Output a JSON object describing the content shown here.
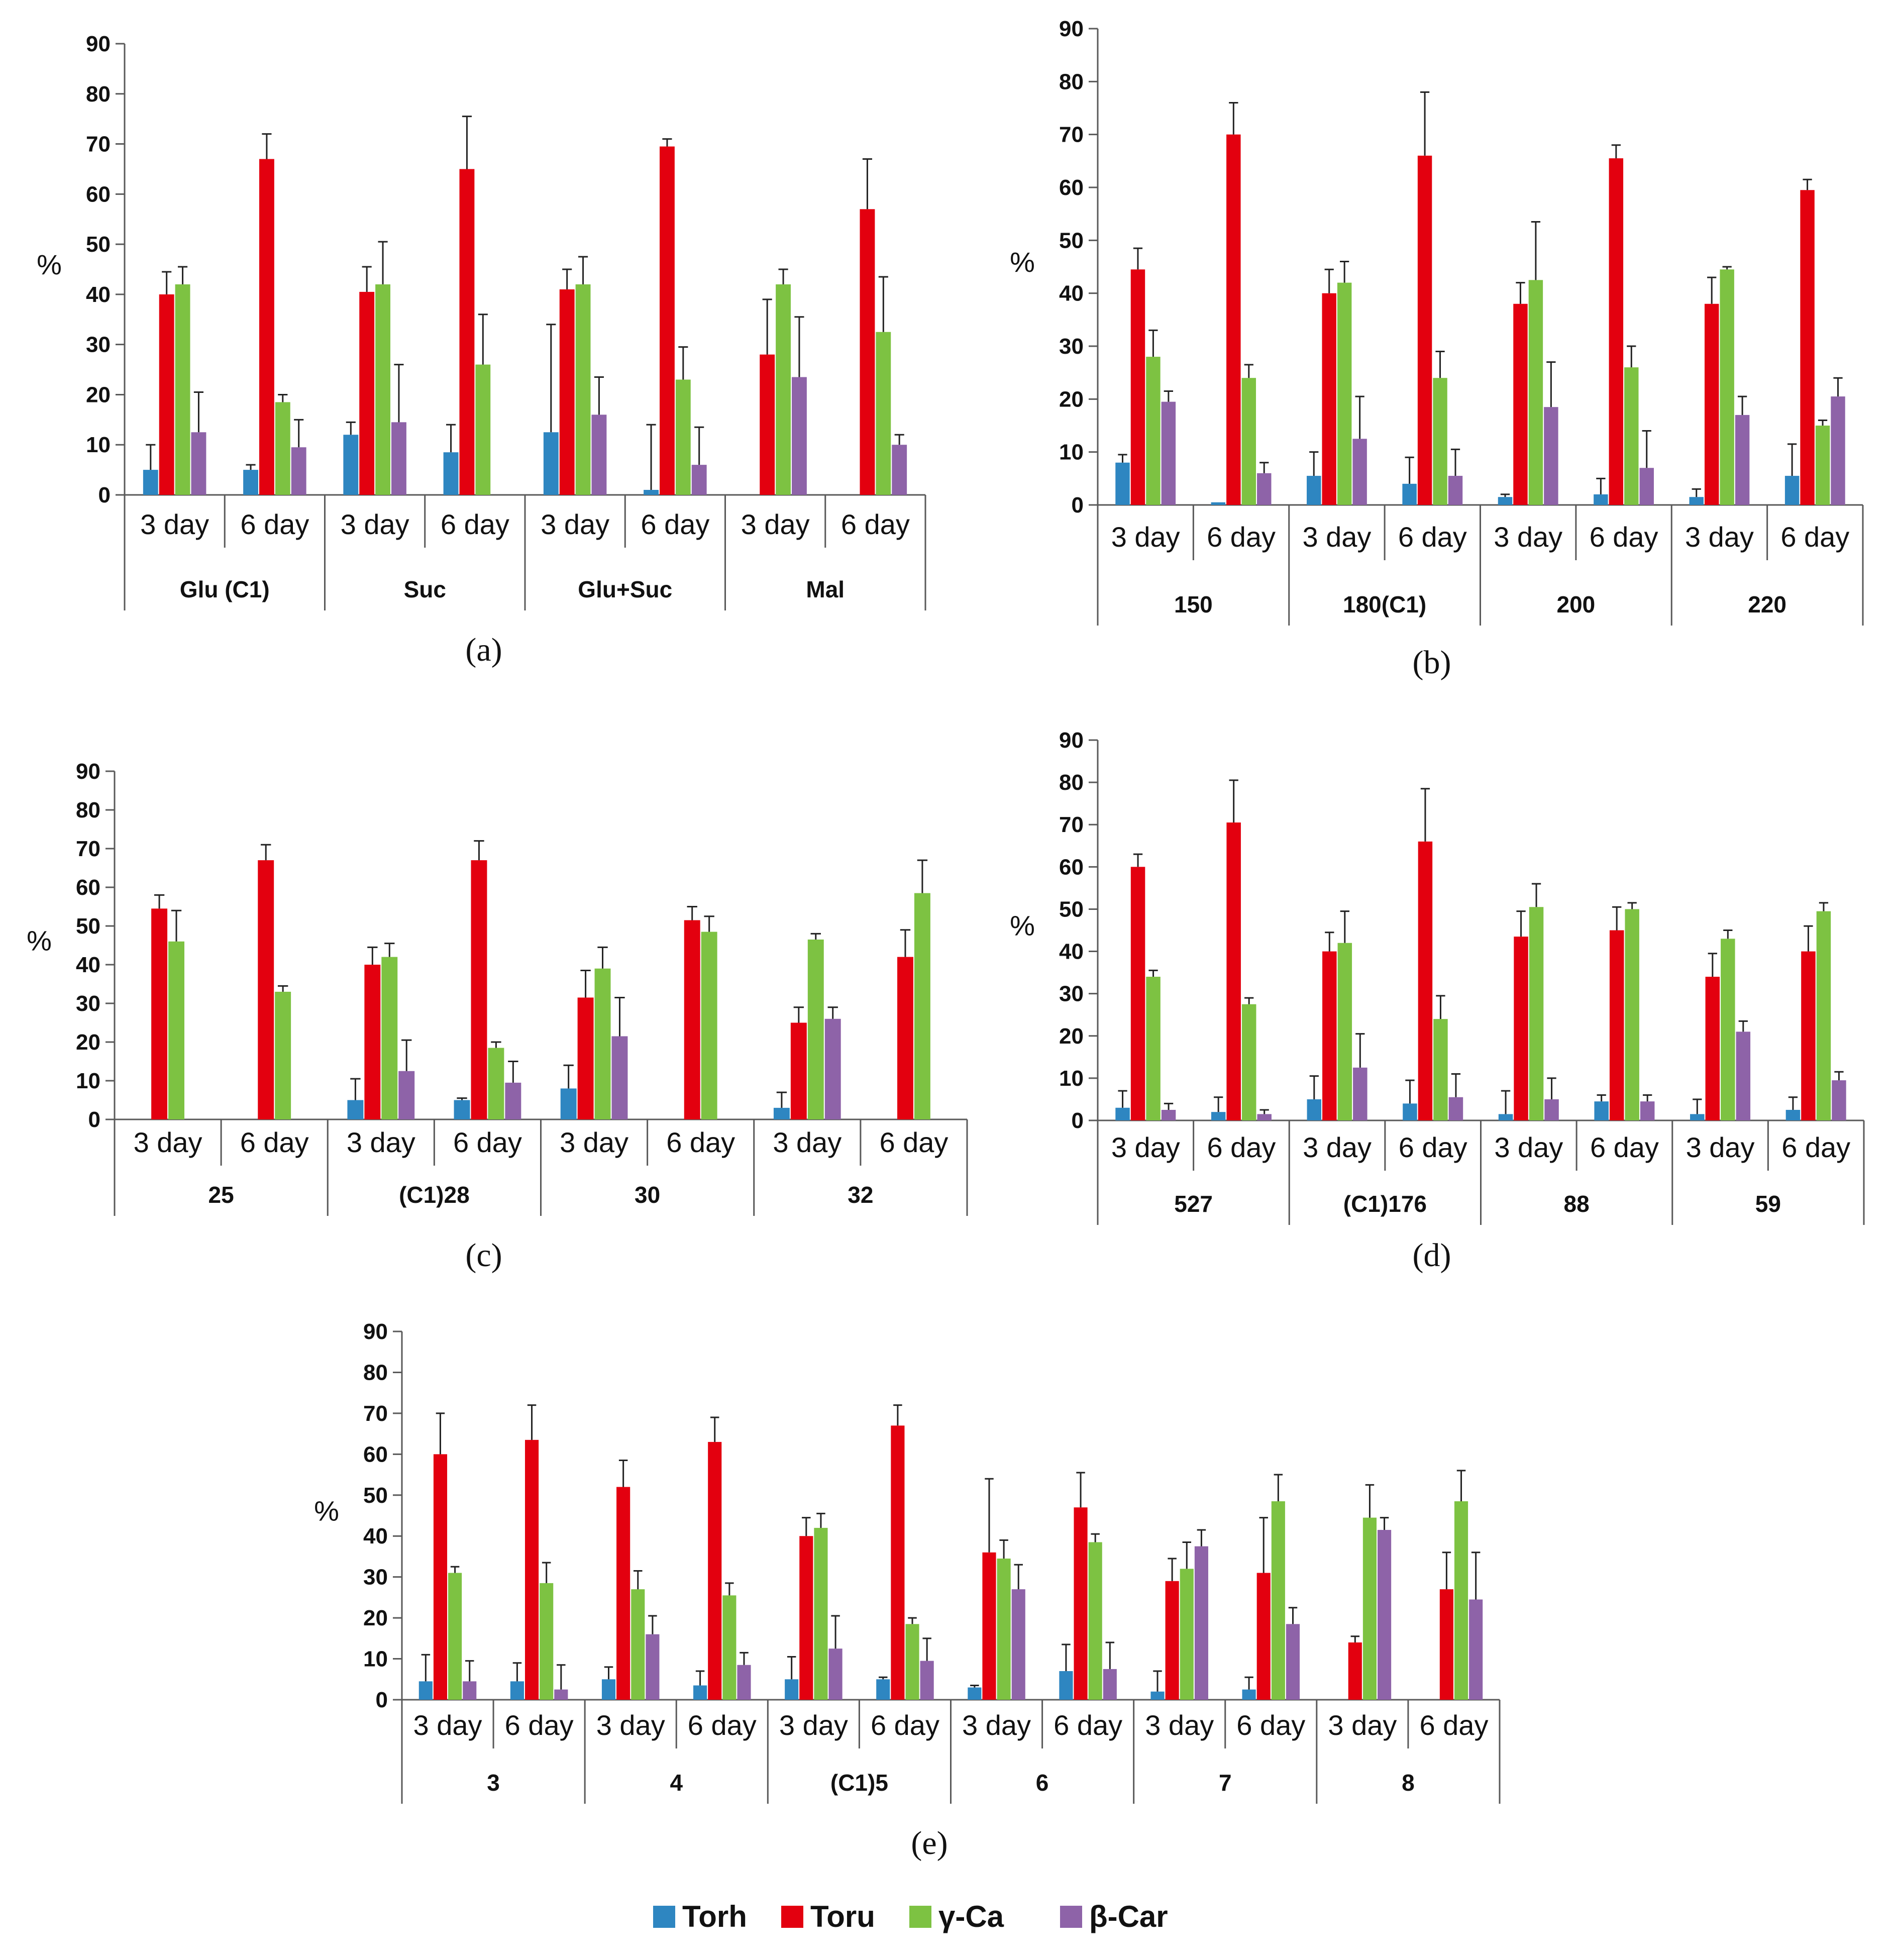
{
  "colors": {
    "Torh": "#2E86C1",
    "Toru": "#E3000F",
    "γ-Ca": "#7DC242",
    "β-Car": "#8E63A8",
    "axis": "#595959",
    "errbar": "#222222"
  },
  "legend": {
    "items": [
      "Torh",
      "Toru",
      "γ-Ca",
      "β-Car"
    ]
  },
  "chart_data": [
    {
      "type": "bar",
      "label": "(a)",
      "ylabel": "%",
      "ylim": [
        0,
        90
      ],
      "yticks": [
        0,
        10,
        20,
        30,
        40,
        50,
        60,
        70,
        80,
        90
      ],
      "groups": [
        {
          "name": "Glu (C1)",
          "subs": [
            {
              "name": "3 day",
              "values": [
                5,
                40,
                42,
                12.5
              ],
              "errors": [
                5,
                4.5,
                3.5,
                8
              ]
            },
            {
              "name": "6 day",
              "values": [
                5,
                67,
                18.5,
                9.5
              ],
              "errors": [
                1,
                5,
                1.5,
                5.5
              ]
            }
          ]
        },
        {
          "name": "Suc",
          "subs": [
            {
              "name": "3 day",
              "values": [
                12,
                40.5,
                42,
                14.5
              ],
              "errors": [
                2.5,
                5,
                8.5,
                11.5
              ]
            },
            {
              "name": "6 day",
              "values": [
                8.5,
                65,
                26,
                0
              ],
              "errors": [
                5.5,
                10.5,
                10,
                0
              ]
            }
          ]
        },
        {
          "name": "Glu+Suc",
          "subs": [
            {
              "name": "3 day",
              "values": [
                12.5,
                41,
                42,
                16
              ],
              "errors": [
                21.5,
                4,
                5.5,
                7.5
              ]
            },
            {
              "name": "6 day",
              "values": [
                1,
                69.5,
                23,
                6
              ],
              "errors": [
                13,
                1.5,
                6.5,
                7.5
              ]
            }
          ]
        },
        {
          "name": "Mal",
          "subs": [
            {
              "name": "3 day",
              "values": [
                0,
                28,
                42,
                23.5
              ],
              "errors": [
                0,
                11,
                3,
                12
              ]
            },
            {
              "name": "6 day",
              "values": [
                0,
                57,
                32.5,
                10
              ],
              "errors": [
                0,
                10,
                11,
                2
              ]
            }
          ]
        }
      ]
    },
    {
      "type": "bar",
      "label": "(b)",
      "ylabel": "%",
      "ylim": [
        0,
        90
      ],
      "yticks": [
        0,
        10,
        20,
        30,
        40,
        50,
        60,
        70,
        80,
        90
      ],
      "groups": [
        {
          "name": "150",
          "subs": [
            {
              "name": "3 day",
              "values": [
                8,
                44.5,
                28,
                19.5
              ],
              "errors": [
                1.5,
                4,
                5,
                2
              ]
            },
            {
              "name": "6 day",
              "values": [
                0.5,
                70,
                24,
                6
              ],
              "errors": [
                0,
                6,
                2.5,
                2
              ]
            }
          ]
        },
        {
          "name": "180(C1)",
          "subs": [
            {
              "name": "3 day",
              "values": [
                5.5,
                40,
                42,
                12.5
              ],
              "errors": [
                4.5,
                4.5,
                4,
                8
              ]
            },
            {
              "name": "6 day",
              "values": [
                4,
                66,
                24,
                5.5
              ],
              "errors": [
                5,
                12,
                5,
                5
              ]
            }
          ]
        },
        {
          "name": "200",
          "subs": [
            {
              "name": "3 day",
              "values": [
                1.5,
                38,
                42.5,
                18.5
              ],
              "errors": [
                0.5,
                4,
                11,
                8.5
              ]
            },
            {
              "name": "6 day",
              "values": [
                2,
                65.5,
                26,
                7
              ],
              "errors": [
                3,
                2.5,
                4,
                7
              ]
            }
          ]
        },
        {
          "name": "220",
          "subs": [
            {
              "name": "3 day",
              "values": [
                1.5,
                38,
                44.5,
                17
              ],
              "errors": [
                1.5,
                5,
                0.5,
                3.5
              ]
            },
            {
              "name": "6 day",
              "values": [
                5.5,
                59.5,
                15,
                20.5
              ],
              "errors": [
                6,
                2,
                1,
                3.5
              ]
            }
          ]
        }
      ]
    },
    {
      "type": "bar",
      "label": "(c)",
      "ylabel": "%",
      "ylim": [
        0,
        90
      ],
      "yticks": [
        0,
        10,
        20,
        30,
        40,
        50,
        60,
        70,
        80,
        90
      ],
      "groups": [
        {
          "name": "25",
          "subs": [
            {
              "name": "3 day",
              "values": [
                0,
                54.5,
                46,
                0
              ],
              "errors": [
                0,
                3.5,
                8,
                0
              ]
            },
            {
              "name": "6 day",
              "values": [
                0,
                67,
                33,
                0
              ],
              "errors": [
                0,
                4,
                1.5,
                0
              ]
            }
          ]
        },
        {
          "name": "(C1)28",
          "subs": [
            {
              "name": "3 day",
              "values": [
                5,
                40,
                42,
                12.5
              ],
              "errors": [
                5.5,
                4.5,
                3.5,
                8
              ]
            },
            {
              "name": "6 day",
              "values": [
                5,
                67,
                18.5,
                9.5
              ],
              "errors": [
                0.5,
                5,
                1.5,
                5.5
              ]
            }
          ]
        },
        {
          "name": "30",
          "subs": [
            {
              "name": "3 day",
              "values": [
                8,
                31.5,
                39,
                21.5
              ],
              "errors": [
                6,
                7,
                5.5,
                10
              ]
            },
            {
              "name": "6 day",
              "values": [
                0,
                51.5,
                48.5,
                0
              ],
              "errors": [
                0,
                3.5,
                4,
                0
              ]
            }
          ]
        },
        {
          "name": "32",
          "subs": [
            {
              "name": "3 day",
              "values": [
                3,
                25,
                46.5,
                26
              ],
              "errors": [
                4,
                4,
                1.5,
                3
              ]
            },
            {
              "name": "6 day",
              "values": [
                0,
                42,
                58.5,
                0
              ],
              "errors": [
                0,
                7,
                8.5,
                0
              ]
            }
          ]
        }
      ]
    },
    {
      "type": "bar",
      "label": "(d)",
      "ylabel": "%",
      "ylim": [
        0,
        90
      ],
      "yticks": [
        0,
        10,
        20,
        30,
        40,
        50,
        60,
        70,
        80,
        90
      ],
      "groups": [
        {
          "name": "527",
          "subs": [
            {
              "name": "3 day",
              "values": [
                3,
                60,
                34,
                2.5
              ],
              "errors": [
                4,
                3,
                1.5,
                1.5
              ]
            },
            {
              "name": "6 day",
              "values": [
                2,
                70.5,
                27.5,
                1.5
              ],
              "errors": [
                3.5,
                10,
                1.5,
                1
              ]
            }
          ]
        },
        {
          "name": "(C1)176",
          "subs": [
            {
              "name": "3 day",
              "values": [
                5,
                40,
                42,
                12.5
              ],
              "errors": [
                5.5,
                4.5,
                7.5,
                8
              ]
            },
            {
              "name": "6 day",
              "values": [
                4,
                66,
                24,
                5.5
              ],
              "errors": [
                5.5,
                12.5,
                5.5,
                5.5
              ]
            }
          ]
        },
        {
          "name": "88",
          "subs": [
            {
              "name": "3 day",
              "values": [
                1.5,
                43.5,
                50.5,
                5
              ],
              "errors": [
                5.5,
                6,
                5.5,
                5
              ]
            },
            {
              "name": "6 day",
              "values": [
                4.5,
                45,
                50,
                4.5
              ],
              "errors": [
                1.5,
                5.5,
                1.5,
                1.5
              ]
            }
          ]
        },
        {
          "name": "59",
          "subs": [
            {
              "name": "3 day",
              "values": [
                1.5,
                34,
                43,
                21
              ],
              "errors": [
                3.5,
                5.5,
                2,
                2.5
              ]
            },
            {
              "name": "6 day",
              "values": [
                2.5,
                40,
                49.5,
                9.5
              ],
              "errors": [
                3,
                6,
                2,
                2
              ]
            }
          ]
        }
      ]
    },
    {
      "type": "bar",
      "label": "(e)",
      "ylabel": "%",
      "ylim": [
        0,
        90
      ],
      "yticks": [
        0,
        10,
        20,
        30,
        40,
        50,
        60,
        70,
        80,
        90
      ],
      "groups": [
        {
          "name": "3",
          "subs": [
            {
              "name": "3 day",
              "values": [
                4.5,
                60,
                31,
                4.5
              ],
              "errors": [
                6.5,
                10,
                1.5,
                5
              ]
            },
            {
              "name": "6 day",
              "values": [
                4.5,
                63.5,
                28.5,
                2.5
              ],
              "errors": [
                4.5,
                8.5,
                5,
                6
              ]
            }
          ]
        },
        {
          "name": "4",
          "subs": [
            {
              "name": "3 day",
              "values": [
                5,
                52,
                27,
                16
              ],
              "errors": [
                3,
                6.5,
                4.5,
                4.5
              ]
            },
            {
              "name": "6 day",
              "values": [
                3.5,
                63,
                25.5,
                8.5
              ],
              "errors": [
                3.5,
                6,
                3,
                3
              ]
            }
          ]
        },
        {
          "name": "(C1)5",
          "subs": [
            {
              "name": "3 day",
              "values": [
                5,
                40,
                42,
                12.5
              ],
              "errors": [
                5.5,
                4.5,
                3.5,
                8
              ]
            },
            {
              "name": "6 day",
              "values": [
                5,
                67,
                18.5,
                9.5
              ],
              "errors": [
                0.5,
                5,
                1.5,
                5.5
              ]
            }
          ]
        },
        {
          "name": "6",
          "subs": [
            {
              "name": "3 day",
              "values": [
                3,
                36,
                34.5,
                27
              ],
              "errors": [
                0.5,
                18,
                4.5,
                6
              ]
            },
            {
              "name": "6 day",
              "values": [
                7,
                47,
                38.5,
                7.5
              ],
              "errors": [
                6.5,
                8.5,
                2,
                6.5
              ]
            }
          ]
        },
        {
          "name": "7",
          "subs": [
            {
              "name": "3 day",
              "values": [
                2,
                29,
                32,
                37.5
              ],
              "errors": [
                5,
                5.5,
                6.5,
                4
              ]
            },
            {
              "name": "6 day",
              "values": [
                2.5,
                31,
                48.5,
                18.5
              ],
              "errors": [
                3,
                13.5,
                6.5,
                4
              ]
            }
          ]
        },
        {
          "name": "8",
          "subs": [
            {
              "name": "3 day",
              "values": [
                0,
                14,
                44.5,
                41.5
              ],
              "errors": [
                0,
                1.5,
                8,
                3
              ]
            },
            {
              "name": "6 day",
              "values": [
                0,
                27,
                48.5,
                24.5
              ],
              "errors": [
                0,
                9,
                7.5,
                11.5
              ]
            }
          ]
        }
      ]
    }
  ]
}
